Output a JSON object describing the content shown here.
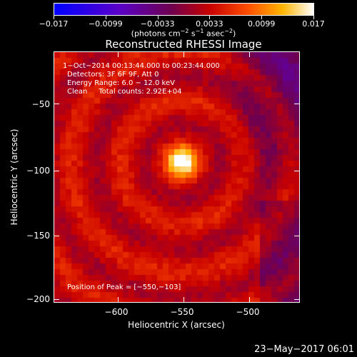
{
  "colorbar": {
    "ticks": [
      "−0.017",
      "−0.0099",
      "−0.0033",
      "0.0033",
      "0.0099",
      "0.017"
    ],
    "units_text": "(photons cm",
    "units_exp1": "−2",
    "units_s": " s",
    "units_exp2": "−1",
    "units_asec": " asec",
    "units_exp3": "−2",
    "units_close": ")"
  },
  "title": "Reconstructed RHESSI Image",
  "info": {
    "time_range": "1−Oct−2014 00:13:44.000 to 00:23:44.000",
    "detectors": "Detectors: 3F 6F 9F, Att 0",
    "energy": "Energy Range: 6.0 − 12.0 keV",
    "clean": "Clean     Total counts: 2.92E+04",
    "peak": "Position of Peak = [−550,−103]"
  },
  "axes": {
    "x_title": "Heliocentric X (arcsec)",
    "y_title": "Heliocentric Y (arcsec)",
    "x_ticks": [
      "−600",
      "−550",
      "−500"
    ],
    "y_ticks": [
      "−50",
      "−100",
      "−150",
      "−200"
    ]
  },
  "timestamp": "23−May−2017 06:01",
  "chart_data": {
    "type": "heatmap",
    "title": "Reconstructed RHESSI Image",
    "xlabel": "Heliocentric X (arcsec)",
    "ylabel": "Heliocentric Y (arcsec)",
    "xlim": [
      -648,
      -460
    ],
    "ylim": [
      -205,
      -23
    ],
    "x_ticks": [
      -600,
      -550,
      -500
    ],
    "y_ticks": [
      -50,
      -100,
      -150,
      -200
    ],
    "colorbar_range": [
      -0.017,
      0.017
    ],
    "colorbar_ticks": [
      -0.017,
      -0.0099,
      -0.0033,
      0.0033,
      0.0099,
      0.017
    ],
    "colormap": "rainbow-like (blue-purple-red-orange-yellow-white)",
    "peak_position": [
      -550,
      -103
    ],
    "peak_value": 0.017
  },
  "colors": {
    "background": "#000000",
    "foreground": "#ffffff"
  }
}
